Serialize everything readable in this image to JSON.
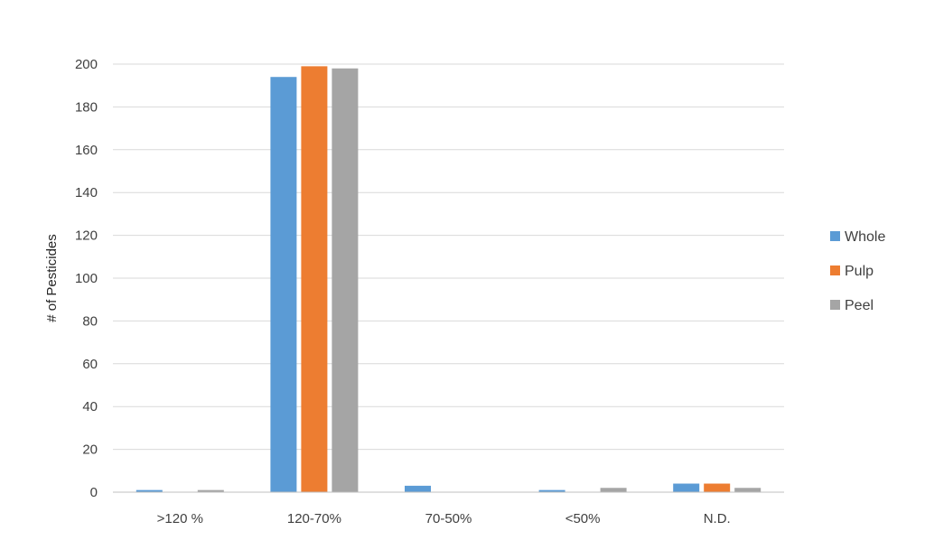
{
  "chart_data": {
    "type": "bar",
    "categories": [
      ">120 %",
      "120-70%",
      "70-50%",
      "<50%",
      "N.D."
    ],
    "series": [
      {
        "name": "Whole",
        "color": "#5b9bd5",
        "values": [
          1,
          194,
          3,
          1,
          4
        ]
      },
      {
        "name": "Pulp",
        "color": "#ed7d31",
        "values": [
          0,
          199,
          0,
          0,
          4
        ]
      },
      {
        "name": "Peel",
        "color": "#a5a5a5",
        "values": [
          1,
          198,
          0,
          2,
          2
        ]
      }
    ],
    "title": "",
    "xlabel": "",
    "ylabel": "# of Pesticides",
    "ylim": [
      0,
      200
    ],
    "yticks": [
      0,
      20,
      40,
      60,
      80,
      100,
      120,
      140,
      160,
      180,
      200
    ],
    "grid": "horizontal",
    "legend_position": "right"
  }
}
